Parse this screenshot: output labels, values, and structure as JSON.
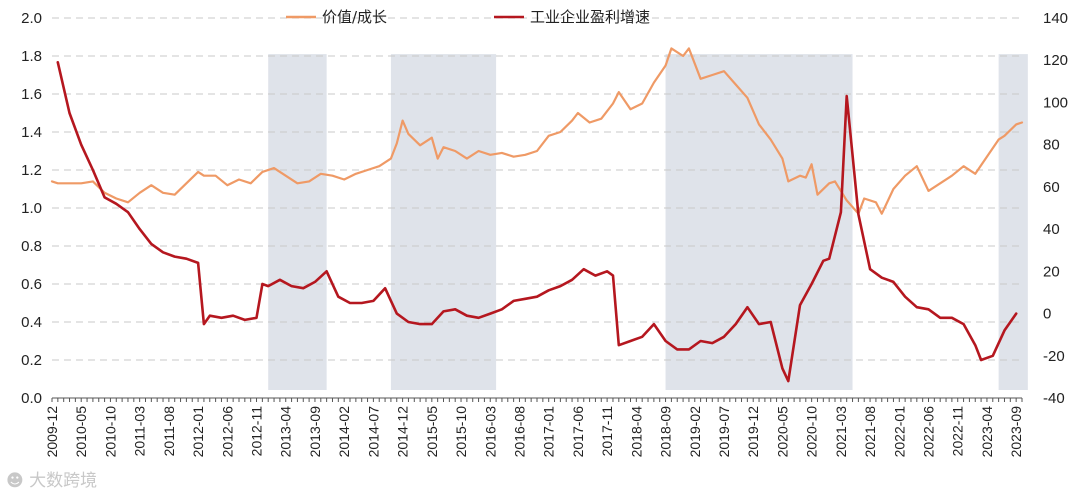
{
  "chart_data": {
    "type": "line",
    "title": "",
    "xlabel": "",
    "ylabel": "",
    "x_ticks": [
      "2009-12",
      "2010-05",
      "2010-10",
      "2011-03",
      "2011-08",
      "2012-01",
      "2012-06",
      "2012-11",
      "2013-04",
      "2013-09",
      "2014-02",
      "2014-07",
      "2014-12",
      "2015-05",
      "2015-10",
      "2016-03",
      "2016-08",
      "2017-01",
      "2017-06",
      "2017-11",
      "2018-04",
      "2018-09",
      "2019-02",
      "2019-07",
      "2019-12",
      "2020-05",
      "2020-10",
      "2021-03",
      "2021-08",
      "2022-01",
      "2022-06",
      "2022-11",
      "2023-04",
      "2023-09"
    ],
    "x_start": "2009-12",
    "x_end": "2023-10",
    "y_left": {
      "min": 0.0,
      "max": 2.0,
      "ticks": [
        "0.0",
        "0.2",
        "0.4",
        "0.6",
        "0.8",
        "1.0",
        "1.2",
        "1.4",
        "1.6",
        "1.8",
        "2.0"
      ]
    },
    "y_right": {
      "min": -40,
      "max": 140,
      "ticks": [
        "-40",
        "-20",
        "0",
        "20",
        "40",
        "60",
        "80",
        "100",
        "120",
        "140"
      ]
    },
    "grid": "horizontal-dashed",
    "legend_position": "top-center",
    "shaded_periods": [
      {
        "start": "2013-01",
        "end": "2013-11"
      },
      {
        "start": "2014-10",
        "end": "2016-04"
      },
      {
        "start": "2018-09",
        "end": "2021-05"
      },
      {
        "start": "2023-06",
        "end": "2023-11"
      }
    ],
    "series": [
      {
        "name": "价值/成长",
        "axis": "left",
        "color": "#ef9a66",
        "points": [
          [
            "2009-12",
            1.14
          ],
          [
            "2010-01",
            1.13
          ],
          [
            "2010-03",
            1.13
          ],
          [
            "2010-05",
            1.13
          ],
          [
            "2010-07",
            1.14
          ],
          [
            "2010-09",
            1.08
          ],
          [
            "2010-11",
            1.05
          ],
          [
            "2011-01",
            1.03
          ],
          [
            "2011-03",
            1.08
          ],
          [
            "2011-05",
            1.12
          ],
          [
            "2011-07",
            1.08
          ],
          [
            "2011-09",
            1.07
          ],
          [
            "2011-11",
            1.13
          ],
          [
            "2012-01",
            1.19
          ],
          [
            "2012-02",
            1.17
          ],
          [
            "2012-04",
            1.17
          ],
          [
            "2012-06",
            1.12
          ],
          [
            "2012-08",
            1.15
          ],
          [
            "2012-10",
            1.13
          ],
          [
            "2012-12",
            1.19
          ],
          [
            "2013-02",
            1.21
          ],
          [
            "2013-04",
            1.17
          ],
          [
            "2013-06",
            1.13
          ],
          [
            "2013-08",
            1.14
          ],
          [
            "2013-10",
            1.18
          ],
          [
            "2013-12",
            1.17
          ],
          [
            "2014-02",
            1.15
          ],
          [
            "2014-04",
            1.18
          ],
          [
            "2014-06",
            1.2
          ],
          [
            "2014-08",
            1.22
          ],
          [
            "2014-10",
            1.26
          ],
          [
            "2014-11",
            1.34
          ],
          [
            "2014-12",
            1.46
          ],
          [
            "2015-01",
            1.39
          ],
          [
            "2015-03",
            1.33
          ],
          [
            "2015-05",
            1.37
          ],
          [
            "2015-06",
            1.26
          ],
          [
            "2015-07",
            1.32
          ],
          [
            "2015-09",
            1.3
          ],
          [
            "2015-11",
            1.26
          ],
          [
            "2016-01",
            1.3
          ],
          [
            "2016-03",
            1.28
          ],
          [
            "2016-05",
            1.29
          ],
          [
            "2016-07",
            1.27
          ],
          [
            "2016-09",
            1.28
          ],
          [
            "2016-11",
            1.3
          ],
          [
            "2017-01",
            1.38
          ],
          [
            "2017-03",
            1.4
          ],
          [
            "2017-05",
            1.46
          ],
          [
            "2017-06",
            1.5
          ],
          [
            "2017-08",
            1.45
          ],
          [
            "2017-10",
            1.47
          ],
          [
            "2017-12",
            1.55
          ],
          [
            "2018-01",
            1.61
          ],
          [
            "2018-03",
            1.52
          ],
          [
            "2018-05",
            1.55
          ],
          [
            "2018-07",
            1.66
          ],
          [
            "2018-09",
            1.75
          ],
          [
            "2018-10",
            1.84
          ],
          [
            "2018-12",
            1.8
          ],
          [
            "2019-01",
            1.84
          ],
          [
            "2019-03",
            1.68
          ],
          [
            "2019-05",
            1.7
          ],
          [
            "2019-07",
            1.72
          ],
          [
            "2019-09",
            1.65
          ],
          [
            "2019-11",
            1.58
          ],
          [
            "2020-01",
            1.44
          ],
          [
            "2020-03",
            1.36
          ],
          [
            "2020-05",
            1.26
          ],
          [
            "2020-06",
            1.14
          ],
          [
            "2020-08",
            1.17
          ],
          [
            "2020-09",
            1.16
          ],
          [
            "2020-10",
            1.23
          ],
          [
            "2020-11",
            1.07
          ],
          [
            "2021-01",
            1.13
          ],
          [
            "2021-02",
            1.14
          ],
          [
            "2021-04",
            1.04
          ],
          [
            "2021-06",
            0.97
          ],
          [
            "2021-07",
            1.05
          ],
          [
            "2021-09",
            1.03
          ],
          [
            "2021-10",
            0.97
          ],
          [
            "2021-12",
            1.1
          ],
          [
            "2022-02",
            1.17
          ],
          [
            "2022-04",
            1.22
          ],
          [
            "2022-06",
            1.09
          ],
          [
            "2022-08",
            1.13
          ],
          [
            "2022-10",
            1.17
          ],
          [
            "2022-12",
            1.22
          ],
          [
            "2023-02",
            1.18
          ],
          [
            "2023-04",
            1.27
          ],
          [
            "2023-06",
            1.36
          ],
          [
            "2023-07",
            1.38
          ],
          [
            "2023-09",
            1.44
          ],
          [
            "2023-10",
            1.45
          ]
        ]
      },
      {
        "name": "工业企业盈利增速",
        "axis": "right",
        "color": "#b5171f",
        "points": [
          [
            "2010-01",
            119
          ],
          [
            "2010-03",
            95
          ],
          [
            "2010-05",
            80
          ],
          [
            "2010-07",
            68
          ],
          [
            "2010-09",
            55
          ],
          [
            "2010-11",
            52
          ],
          [
            "2011-01",
            48
          ],
          [
            "2011-03",
            40
          ],
          [
            "2011-05",
            33
          ],
          [
            "2011-07",
            29
          ],
          [
            "2011-09",
            27
          ],
          [
            "2011-11",
            26
          ],
          [
            "2012-01",
            24
          ],
          [
            "2012-02",
            -5
          ],
          [
            "2012-03",
            -1
          ],
          [
            "2012-05",
            -2
          ],
          [
            "2012-07",
            -1
          ],
          [
            "2012-09",
            -3
          ],
          [
            "2012-11",
            -2
          ],
          [
            "2012-12",
            14
          ],
          [
            "2013-01",
            13
          ],
          [
            "2013-03",
            16
          ],
          [
            "2013-05",
            13
          ],
          [
            "2013-07",
            12
          ],
          [
            "2013-09",
            15
          ],
          [
            "2013-11",
            20
          ],
          [
            "2014-01",
            8
          ],
          [
            "2014-03",
            5
          ],
          [
            "2014-05",
            5
          ],
          [
            "2014-07",
            6
          ],
          [
            "2014-09",
            12
          ],
          [
            "2014-11",
            0
          ],
          [
            "2015-01",
            -4
          ],
          [
            "2015-03",
            -5
          ],
          [
            "2015-05",
            -5
          ],
          [
            "2015-07",
            1
          ],
          [
            "2015-09",
            2
          ],
          [
            "2015-11",
            -1
          ],
          [
            "2016-01",
            -2
          ],
          [
            "2016-03",
            0
          ],
          [
            "2016-05",
            2
          ],
          [
            "2016-07",
            6
          ],
          [
            "2016-09",
            7
          ],
          [
            "2016-11",
            8
          ],
          [
            "2017-01",
            11
          ],
          [
            "2017-03",
            13
          ],
          [
            "2017-05",
            16
          ],
          [
            "2017-07",
            21
          ],
          [
            "2017-09",
            18
          ],
          [
            "2017-11",
            20
          ],
          [
            "2017-12",
            18
          ],
          [
            "2018-01",
            -15
          ],
          [
            "2018-03",
            -13
          ],
          [
            "2018-05",
            -11
          ],
          [
            "2018-07",
            -5
          ],
          [
            "2018-09",
            -13
          ],
          [
            "2018-11",
            -17
          ],
          [
            "2019-01",
            -17
          ],
          [
            "2019-03",
            -13
          ],
          [
            "2019-05",
            -14
          ],
          [
            "2019-07",
            -11
          ],
          [
            "2019-09",
            -5
          ],
          [
            "2019-11",
            3
          ],
          [
            "2020-01",
            -5
          ],
          [
            "2020-03",
            -4
          ],
          [
            "2020-05",
            -26
          ],
          [
            "2020-06",
            -32
          ],
          [
            "2020-08",
            4
          ],
          [
            "2020-10",
            14
          ],
          [
            "2020-12",
            25
          ],
          [
            "2021-01",
            26
          ],
          [
            "2021-03",
            48
          ],
          [
            "2021-04",
            103
          ],
          [
            "2021-06",
            47
          ],
          [
            "2021-08",
            21
          ],
          [
            "2021-10",
            17
          ],
          [
            "2021-12",
            15
          ],
          [
            "2022-02",
            8
          ],
          [
            "2022-04",
            3
          ],
          [
            "2022-06",
            2
          ],
          [
            "2022-08",
            -2
          ],
          [
            "2022-10",
            -2
          ],
          [
            "2022-12",
            -5
          ],
          [
            "2023-02",
            -15
          ],
          [
            "2023-03",
            -22
          ],
          [
            "2023-05",
            -20
          ],
          [
            "2023-07",
            -8
          ],
          [
            "2023-09",
            0
          ]
        ]
      }
    ]
  }
}
